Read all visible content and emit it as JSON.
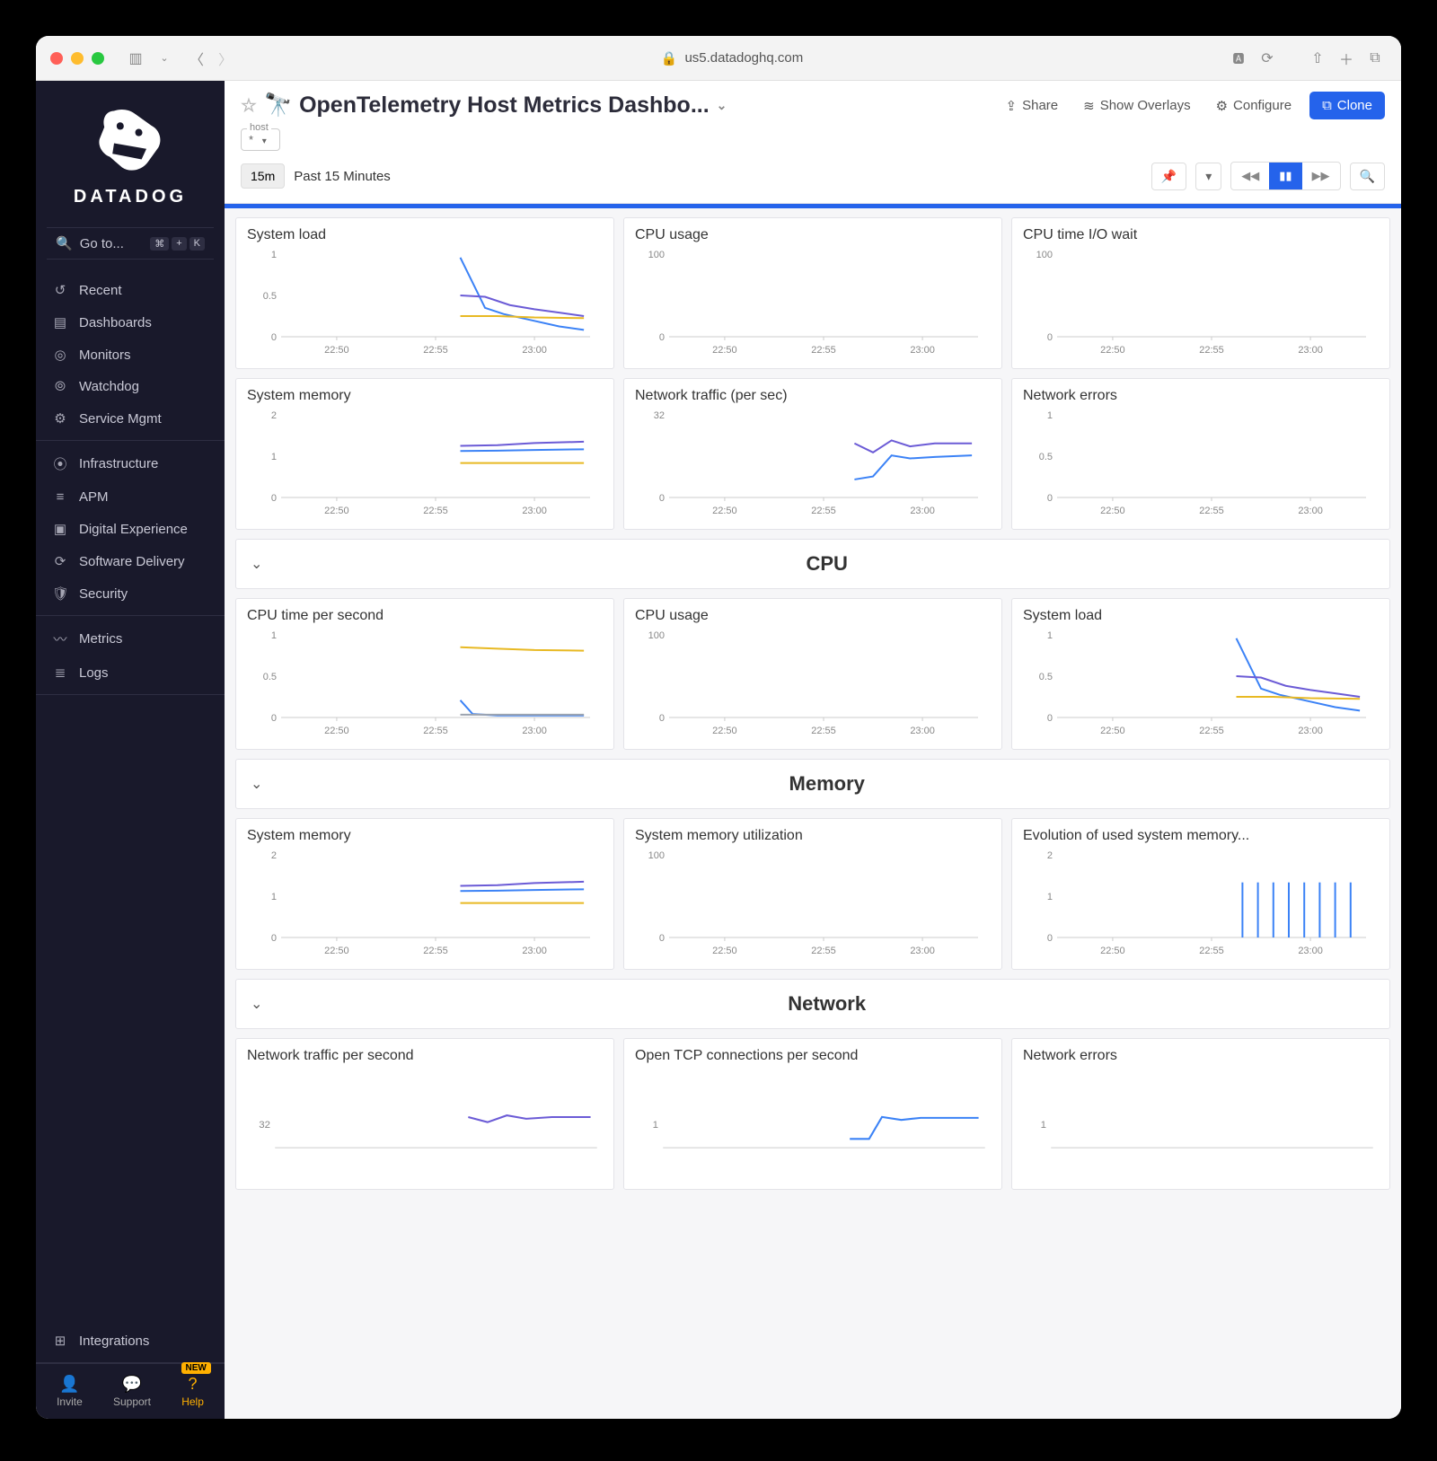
{
  "browser": {
    "url_host": "us5.datadoghq.com"
  },
  "sidebar": {
    "brand": "DATADOG",
    "goto_label": "Go to...",
    "kbd": [
      "⌘",
      "+",
      "K"
    ],
    "sections": [
      {
        "items": [
          {
            "icon": "↺",
            "label": "Recent"
          },
          {
            "icon": "▤",
            "label": "Dashboards"
          },
          {
            "icon": "◎",
            "label": "Monitors"
          },
          {
            "icon": "⦾",
            "label": "Watchdog"
          },
          {
            "icon": "⚙",
            "label": "Service Mgmt"
          }
        ]
      },
      {
        "items": [
          {
            "icon": "⦿",
            "label": "Infrastructure"
          },
          {
            "icon": "≡",
            "label": "APM"
          },
          {
            "icon": "▣",
            "label": "Digital Experience"
          },
          {
            "icon": "⟳",
            "label": "Software Delivery"
          },
          {
            "icon": "🛡",
            "label": "Security"
          }
        ]
      },
      {
        "items": [
          {
            "icon": "〰",
            "label": "Metrics"
          },
          {
            "icon": "≣",
            "label": "Logs"
          }
        ]
      }
    ],
    "integrations_label": "Integrations",
    "bottom": {
      "invite": "Invite",
      "support": "Support",
      "help": "Help",
      "new_badge": "NEW"
    }
  },
  "header": {
    "title": "OpenTelemetry Host Metrics Dashbo...",
    "share": "Share",
    "overlays": "Show Overlays",
    "configure": "Configure",
    "clone": "Clone",
    "host_label": "host",
    "host_value": "*"
  },
  "timebar": {
    "range_short": "15m",
    "range_label": "Past 15 Minutes"
  },
  "charts": {
    "x_ticks": [
      "22:50",
      "22:55",
      "23:00"
    ],
    "x_positions": [
      0.18,
      0.5,
      0.82
    ],
    "colors": {
      "blue": "#3b82f6",
      "purple": "#6b5bd6",
      "yellow": "#e8b923",
      "gray": "#9ca3af"
    },
    "overview": [
      {
        "title": "System load",
        "y_ticks": [
          "0",
          "0.5",
          "1"
        ],
        "y_max": 1.2,
        "series": [
          {
            "color": "blue",
            "points": [
              [
                0.58,
                1.15
              ],
              [
                0.66,
                0.42
              ],
              [
                0.72,
                0.33
              ],
              [
                0.8,
                0.25
              ],
              [
                0.9,
                0.15
              ],
              [
                0.98,
                0.1
              ]
            ]
          },
          {
            "color": "purple",
            "points": [
              [
                0.58,
                0.6
              ],
              [
                0.66,
                0.58
              ],
              [
                0.74,
                0.46
              ],
              [
                0.82,
                0.4
              ],
              [
                0.9,
                0.35
              ],
              [
                0.98,
                0.3
              ]
            ]
          },
          {
            "color": "yellow",
            "points": [
              [
                0.58,
                0.3
              ],
              [
                0.7,
                0.3
              ],
              [
                0.82,
                0.28
              ],
              [
                0.98,
                0.27
              ]
            ]
          }
        ]
      },
      {
        "title": "CPU usage",
        "y_ticks": [
          "0",
          "100"
        ],
        "y_max": 180,
        "series": []
      },
      {
        "title": "CPU time I/O wait",
        "y_ticks": [
          "0",
          "100"
        ],
        "y_max": 180,
        "series": []
      },
      {
        "title": "System memory",
        "y_ticks": [
          "0",
          "1",
          "2"
        ],
        "y_max": 2.4,
        "series": [
          {
            "color": "purple",
            "points": [
              [
                0.58,
                1.5
              ],
              [
                0.7,
                1.52
              ],
              [
                0.82,
                1.58
              ],
              [
                0.98,
                1.62
              ]
            ]
          },
          {
            "color": "blue",
            "points": [
              [
                0.58,
                1.35
              ],
              [
                0.7,
                1.36
              ],
              [
                0.82,
                1.38
              ],
              [
                0.98,
                1.4
              ]
            ]
          },
          {
            "color": "yellow",
            "points": [
              [
                0.58,
                1.0
              ],
              [
                0.7,
                1.0
              ],
              [
                0.82,
                1.0
              ],
              [
                0.98,
                1.0
              ]
            ]
          }
        ]
      },
      {
        "title": "Network traffic (per sec)",
        "y_ticks": [
          "0",
          "32"
        ],
        "y_max": 55,
        "series": [
          {
            "color": "purple",
            "points": [
              [
                0.6,
                36
              ],
              [
                0.66,
                30
              ],
              [
                0.72,
                38
              ],
              [
                0.78,
                34
              ],
              [
                0.86,
                36
              ],
              [
                0.98,
                36
              ]
            ]
          },
          {
            "color": "blue",
            "points": [
              [
                0.6,
                12
              ],
              [
                0.66,
                14
              ],
              [
                0.72,
                28
              ],
              [
                0.78,
                26
              ],
              [
                0.86,
                27
              ],
              [
                0.98,
                28
              ]
            ]
          }
        ]
      },
      {
        "title": "Network errors",
        "y_ticks": [
          "0",
          "0.5",
          "1"
        ],
        "y_max": 1.2,
        "series": []
      }
    ],
    "sections": [
      {
        "title": "CPU",
        "cards": [
          {
            "title": "CPU time per second",
            "y_ticks": [
              "0",
              "0.5",
              "1"
            ],
            "y_max": 1.2,
            "series": [
              {
                "color": "yellow",
                "points": [
                  [
                    0.58,
                    1.02
                  ],
                  [
                    0.7,
                    1.0
                  ],
                  [
                    0.82,
                    0.98
                  ],
                  [
                    0.98,
                    0.97
                  ]
                ]
              },
              {
                "color": "blue",
                "points": [
                  [
                    0.58,
                    0.25
                  ],
                  [
                    0.62,
                    0.05
                  ],
                  [
                    0.7,
                    0.03
                  ],
                  [
                    0.82,
                    0.03
                  ],
                  [
                    0.98,
                    0.03
                  ]
                ]
              },
              {
                "color": "gray",
                "points": [
                  [
                    0.58,
                    0.04
                  ],
                  [
                    0.98,
                    0.04
                  ]
                ]
              }
            ]
          },
          {
            "title": "CPU usage",
            "y_ticks": [
              "0",
              "100"
            ],
            "y_max": 180,
            "series": []
          },
          {
            "title": "System load",
            "y_ticks": [
              "0",
              "0.5",
              "1"
            ],
            "y_max": 1.2,
            "series": [
              {
                "color": "blue",
                "points": [
                  [
                    0.58,
                    1.15
                  ],
                  [
                    0.66,
                    0.42
                  ],
                  [
                    0.72,
                    0.33
                  ],
                  [
                    0.8,
                    0.25
                  ],
                  [
                    0.9,
                    0.15
                  ],
                  [
                    0.98,
                    0.1
                  ]
                ]
              },
              {
                "color": "purple",
                "points": [
                  [
                    0.58,
                    0.6
                  ],
                  [
                    0.66,
                    0.58
                  ],
                  [
                    0.74,
                    0.46
                  ],
                  [
                    0.82,
                    0.4
                  ],
                  [
                    0.9,
                    0.35
                  ],
                  [
                    0.98,
                    0.3
                  ]
                ]
              },
              {
                "color": "yellow",
                "points": [
                  [
                    0.58,
                    0.3
                  ],
                  [
                    0.7,
                    0.3
                  ],
                  [
                    0.82,
                    0.28
                  ],
                  [
                    0.98,
                    0.27
                  ]
                ]
              }
            ]
          }
        ]
      },
      {
        "title": "Memory",
        "cards": [
          {
            "title": "System memory",
            "y_ticks": [
              "0",
              "1",
              "2"
            ],
            "y_max": 2.4,
            "series": [
              {
                "color": "purple",
                "points": [
                  [
                    0.58,
                    1.5
                  ],
                  [
                    0.7,
                    1.52
                  ],
                  [
                    0.82,
                    1.58
                  ],
                  [
                    0.98,
                    1.62
                  ]
                ]
              },
              {
                "color": "blue",
                "points": [
                  [
                    0.58,
                    1.35
                  ],
                  [
                    0.7,
                    1.36
                  ],
                  [
                    0.82,
                    1.38
                  ],
                  [
                    0.98,
                    1.4
                  ]
                ]
              },
              {
                "color": "yellow",
                "points": [
                  [
                    0.58,
                    1.0
                  ],
                  [
                    0.7,
                    1.0
                  ],
                  [
                    0.82,
                    1.0
                  ],
                  [
                    0.98,
                    1.0
                  ]
                ]
              }
            ]
          },
          {
            "title": "System memory utilization",
            "y_ticks": [
              "0",
              "100"
            ],
            "y_max": 180,
            "series": []
          },
          {
            "title": "Evolution of used system memory...",
            "y_ticks": [
              "0",
              "1",
              "2"
            ],
            "y_max": 2.4,
            "bars": {
              "color": "blue",
              "xs": [
                0.6,
                0.65,
                0.7,
                0.75,
                0.8,
                0.85,
                0.9,
                0.95
              ],
              "h": 1.6
            }
          }
        ]
      },
      {
        "title": "Network",
        "cards": [
          {
            "title": "Network traffic per second",
            "y_ticks": [
              "32"
            ],
            "y_max": 55,
            "partial": true,
            "series": [
              {
                "color": "purple",
                "points": [
                  [
                    0.6,
                    36
                  ],
                  [
                    0.66,
                    30
                  ],
                  [
                    0.72,
                    38
                  ],
                  [
                    0.78,
                    34
                  ],
                  [
                    0.86,
                    36
                  ],
                  [
                    0.98,
                    36
                  ]
                ]
              }
            ]
          },
          {
            "title": "Open TCP connections per second",
            "y_ticks": [
              "1"
            ],
            "y_max": 1.6,
            "partial": true,
            "series": [
              {
                "color": "blue",
                "points": [
                  [
                    0.58,
                    0.3
                  ],
                  [
                    0.64,
                    0.3
                  ],
                  [
                    0.68,
                    1.05
                  ],
                  [
                    0.74,
                    0.95
                  ],
                  [
                    0.8,
                    1.02
                  ],
                  [
                    0.98,
                    1.02
                  ]
                ]
              }
            ]
          },
          {
            "title": "Network errors",
            "y_ticks": [
              "1"
            ],
            "y_max": 1.6,
            "partial": true,
            "series": []
          }
        ]
      }
    ]
  }
}
